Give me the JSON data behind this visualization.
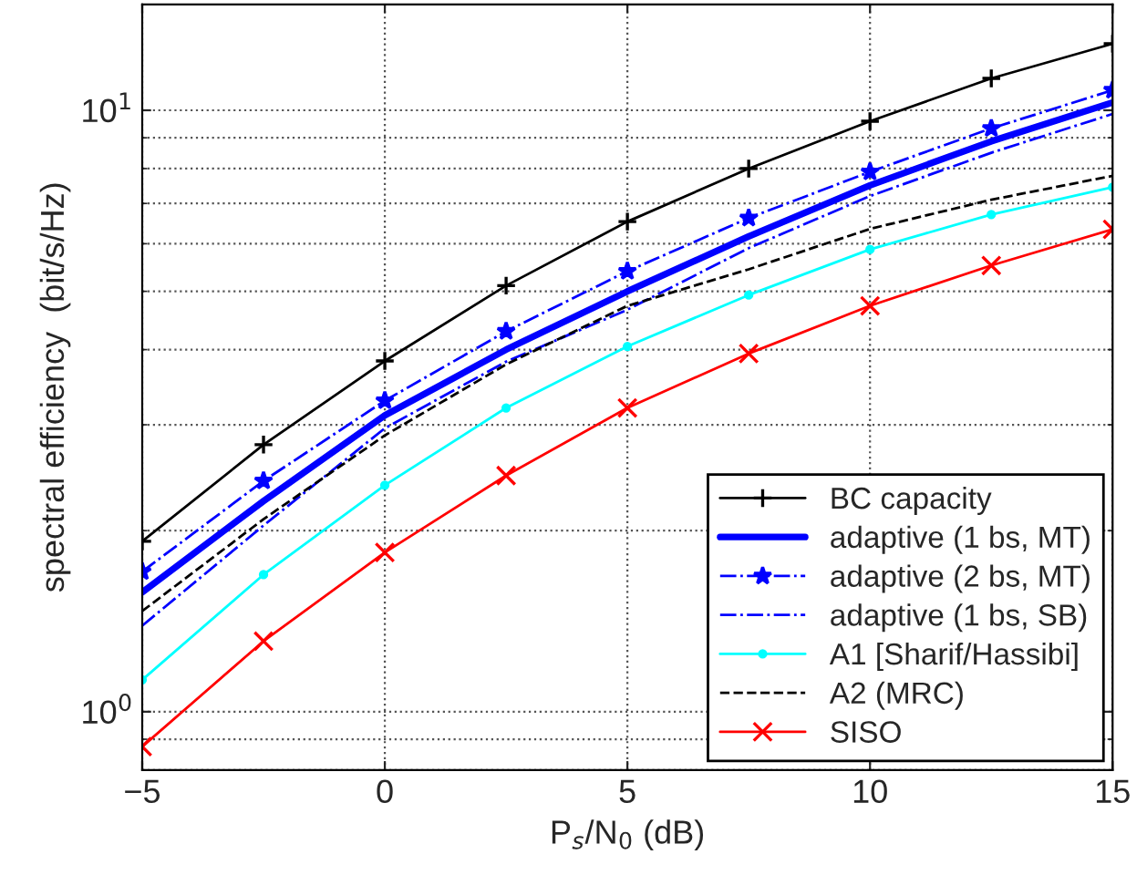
{
  "chart_data": {
    "type": "line",
    "xlabel": "P$_{s}$/N$_{0}$ (dB)",
    "ylabel": "spectral efficiency  (bit/s/Hz)",
    "x": [
      -5,
      -2.5,
      0,
      2.5,
      5,
      7.5,
      10,
      12.5,
      15
    ],
    "series": [
      {
        "name": "BC capacity",
        "color": "#000000",
        "marker": "plus",
        "line_style": "solid",
        "values": [
          1.92,
          2.78,
          3.83,
          5.11,
          6.53,
          8.0,
          9.59,
          11.3,
          12.9
        ]
      },
      {
        "name": "adaptive (1 bs, MT)",
        "color": "#0000ff",
        "marker": "none",
        "line_style": "solid",
        "values": [
          1.58,
          2.24,
          3.11,
          4.0,
          5.0,
          6.17,
          7.5,
          8.88,
          10.3
        ]
      },
      {
        "name": "adaptive (2 bs, MT)",
        "color": "#0000ff",
        "marker": "star",
        "line_style": "dashdot",
        "values": [
          1.71,
          2.42,
          3.29,
          4.29,
          5.4,
          6.62,
          7.9,
          9.33,
          10.8
        ]
      },
      {
        "name": "adaptive (1 bs, SB)",
        "color": "#0000ff",
        "marker": "none",
        "line_style": "dashdot",
        "values": [
          1.39,
          2.04,
          2.96,
          3.82,
          4.66,
          5.9,
          7.2,
          8.5,
          9.86
        ]
      },
      {
        "name": "A1 [Sharif/Hassibi]",
        "color": "#00ffff",
        "marker": "circle",
        "line_style": "solid",
        "values": [
          1.13,
          1.69,
          2.38,
          3.2,
          4.05,
          4.93,
          5.87,
          6.71,
          7.45
        ]
      },
      {
        "name": "A2 (MRC)",
        "color": "#000000",
        "marker": "none",
        "line_style": "dashed",
        "values": [
          1.47,
          2.09,
          2.88,
          3.78,
          4.73,
          5.44,
          6.35,
          7.1,
          7.78
        ]
      },
      {
        "name": "SISO",
        "color": "#ff0000",
        "marker": "cross",
        "line_style": "solid",
        "values": [
          0.875,
          1.31,
          1.84,
          2.47,
          3.2,
          3.94,
          4.73,
          5.52,
          6.34
        ]
      }
    ],
    "log": "y",
    "xlim": [
      -5,
      15
    ],
    "ylim": [
      0.8,
      15
    ],
    "xticks": [
      {
        "value": -5,
        "label": "−5"
      },
      0,
      5,
      10,
      15
    ],
    "yticks": [
      {
        "value": 1,
        "label": "10$^{0}$"
      },
      {
        "value": 10,
        "label": "10$^{1}$"
      }
    ],
    "grid": true,
    "legend": "bottom right"
  }
}
